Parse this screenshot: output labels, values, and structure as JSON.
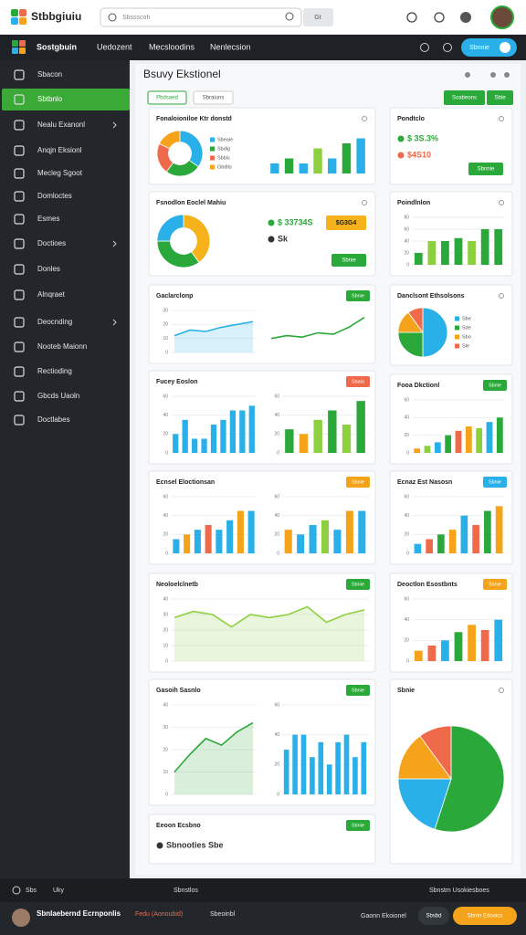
{
  "header": {
    "logo": "Stbbgiuiu",
    "search": "Sbssscoh",
    "search_button": "Gt"
  },
  "nav": {
    "brand": "Sostgbuin",
    "items": [
      "Uedozent",
      "Mecsloodins",
      "Nenlecsion"
    ],
    "button": "Sbnnie"
  },
  "sidebar": {
    "items": [
      "Sbacon",
      "Sbtbnlo",
      "Nealu Exanonl",
      "Anqjn Eksionl",
      "Mecleg Sgoot",
      "Domloctes",
      "Esmes",
      "Doctioes",
      "Donles",
      "Alnqraet",
      "Deocnding",
      "Nooteb Maionn",
      "Rectioding",
      "Gbcds Uaoln",
      "Doctlabes"
    ],
    "active": 1
  },
  "main": {
    "title": "Bsuvy Ekstionel",
    "tabs": [
      "Pbdsaed",
      "Sbraiuns"
    ],
    "buttons": [
      "Soabeons",
      "Sbte"
    ]
  },
  "cards": [
    {
      "title": "Fonaloioniloe Ktr donstd",
      "charts": [
        {
          "type": "donut",
          "values": [
            35,
            25,
            22,
            18
          ],
          "colors": [
            "#2ab0e8",
            "#2aa83a",
            "#ef6a4a",
            "#f5a31a"
          ],
          "labels": [
            "Sbeaie",
            "Sbdig",
            "Sbbis",
            "Gbdlis"
          ]
        },
        {
          "type": "bar",
          "values": [
            2,
            3,
            2,
            5,
            3,
            6,
            7
          ],
          "colors": [
            "#2ab0e8",
            "#2aa83a",
            "#2ab0e8",
            "#8ccf3f",
            "#2ab0e8",
            "#2aa83a",
            "#2ab0e8"
          ],
          "ylim": [
            0,
            8
          ]
        }
      ]
    },
    {
      "title": "Pondtclo",
      "charts": [
        {
          "type": "stat",
          "items": [
            "$ 3S.3%",
            "$4S10"
          ],
          "item_colors": [
            "#2aa83a",
            "#ef6a4a"
          ],
          "button": "Sbnnie"
        }
      ]
    },
    {
      "title": "Fsnodlon Eoclel Mahiu",
      "charts": [
        {
          "type": "donut",
          "values": [
            40,
            35,
            25
          ],
          "colors": [
            "#f5b21a",
            "#2aa83a",
            "#2ab0e8"
          ]
        },
        {
          "type": "stat",
          "items": [
            "$ 33734S",
            "Sk"
          ],
          "item_colors": [
            "#2aa83a",
            "#333333"
          ],
          "badge": "$G3G4",
          "button": "Sbnie"
        }
      ]
    },
    {
      "title": "Poindlnlon",
      "charts": [
        {
          "type": "bar",
          "values": [
            20,
            40,
            40,
            45,
            40,
            60,
            60
          ],
          "colors": [
            "#2aa83a",
            "#8ccf3f",
            "#2aa83a"
          ],
          "ylim": [
            0,
            80
          ],
          "yticks": [
            0,
            20,
            40,
            60,
            80
          ]
        }
      ]
    },
    {
      "title": "Gaclarclonp",
      "badge": "Sbnie",
      "badge_color": "#2aa83a",
      "charts": [
        {
          "type": "line",
          "values": [
            12,
            16,
            15,
            18,
            20,
            22
          ],
          "color": "#2ab0e8",
          "area": true,
          "ylim": [
            0,
            30
          ],
          "yticks": [
            0,
            10,
            20,
            30
          ]
        },
        {
          "type": "line",
          "values": [
            10,
            12,
            11,
            14,
            13,
            18,
            25
          ],
          "color": "#2aa83a",
          "ylim": [
            0,
            30
          ]
        }
      ]
    },
    {
      "title": "Danclsont Ethsolsons",
      "charts": [
        {
          "type": "pie",
          "values": [
            50,
            25,
            15,
            10
          ],
          "colors": [
            "#2ab0e8",
            "#2aa83a",
            "#f5a31a",
            "#ef6a4a"
          ],
          "labels": [
            "Sbe",
            "Sde",
            "Sbo",
            "Sle"
          ]
        }
      ]
    },
    {
      "title": "Fucey Eoslon",
      "badge": "Sbaio",
      "badge_color": "#ef6a4a",
      "charts": [
        {
          "type": "bar",
          "values": [
            20,
            35,
            15,
            15,
            30,
            35,
            45,
            45,
            50
          ],
          "colors": [
            "#2ab0e8"
          ],
          "ylim": [
            0,
            60
          ],
          "yticks": [
            0,
            20,
            40,
            60
          ]
        },
        {
          "type": "bar",
          "values": [
            25,
            20,
            35,
            45,
            30,
            55
          ],
          "colors": [
            "#2aa83a",
            "#f5a31a",
            "#8ccf3f",
            "#2aa83a",
            "#8ccf3f",
            "#2aa83a"
          ],
          "ylim": [
            0,
            60
          ],
          "yticks": [
            0,
            20,
            40,
            60
          ]
        }
      ]
    },
    {
      "title": "Fooa Dkctionl",
      "badge": "Sbnie",
      "badge_color": "#2aa83a",
      "charts": [
        {
          "type": "bar",
          "values": [
            5,
            8,
            12,
            20,
            25,
            30,
            28,
            35,
            40
          ],
          "colors": [
            "#f5a31a",
            "#8ccf3f",
            "#2ab0e8",
            "#2aa83a",
            "#ef6a4a"
          ],
          "ylim": [
            0,
            60
          ],
          "yticks": [
            0,
            20,
            40,
            60
          ]
        }
      ]
    },
    {
      "title": "Ecnsel Eloctionsan",
      "badge": "Sbnie",
      "badge_color": "#f5a31a",
      "charts": [
        {
          "type": "bar",
          "values": [
            15,
            20,
            25,
            30,
            25,
            35,
            45,
            45
          ],
          "colors": [
            "#2ab0e8",
            "#f5a31a",
            "#2ab0e8",
            "#ef6a4a",
            "#2ab0e8"
          ],
          "ylim": [
            0,
            60
          ],
          "yticks": [
            0,
            20,
            40,
            60
          ]
        },
        {
          "type": "bar",
          "values": [
            25,
            20,
            30,
            35,
            25,
            45,
            45
          ],
          "colors": [
            "#f5a31a",
            "#2ab0e8",
            "#2ab0e8",
            "#8ccf3f",
            "#2ab0e8"
          ],
          "ylim": [
            0,
            60
          ],
          "yticks": [
            0,
            20,
            40,
            60
          ]
        }
      ]
    },
    {
      "title": "Ecnaz Est Nasosn",
      "badge": "Sbnie",
      "badge_color": "#2ab0e8",
      "charts": [
        {
          "type": "bar",
          "values": [
            10,
            15,
            20,
            25,
            40,
            30,
            45,
            50
          ],
          "colors": [
            "#2ab0e8",
            "#ef6a4a",
            "#2aa83a",
            "#f5a31a"
          ],
          "ylim": [
            0,
            60
          ],
          "yticks": [
            0,
            20,
            40,
            60
          ]
        }
      ]
    },
    {
      "title": "Neoloelclnetb",
      "badge": "Sbnie",
      "badge_color": "#2aa83a",
      "charts": [
        {
          "type": "line",
          "values": [
            28,
            32,
            30,
            22,
            30,
            28,
            30,
            35,
            25,
            30,
            33
          ],
          "color": "#8ccf3f",
          "area": true,
          "ylim": [
            0,
            40
          ],
          "yticks": [
            0,
            10,
            20,
            30,
            40
          ]
        }
      ]
    },
    {
      "title": "Deoctlon Esostbnts",
      "badge": "Sbnie",
      "badge_color": "#f5a31a",
      "charts": [
        {
          "type": "bar",
          "values": [
            10,
            15,
            20,
            28,
            35,
            30,
            40
          ],
          "colors": [
            "#f5a31a",
            "#ef6a4a",
            "#2ab0e8",
            "#2aa83a"
          ],
          "ylim": [
            0,
            60
          ],
          "yticks": [
            0,
            20,
            40,
            60
          ]
        }
      ]
    },
    {
      "title": "Gasoih Sasnlo",
      "badge": "Sbnie",
      "badge_color": "#2aa83a",
      "charts": [
        {
          "type": "line",
          "values": [
            10,
            18,
            25,
            22,
            28,
            32
          ],
          "color": "#2aa83a",
          "area": true,
          "ylim": [
            0,
            40
          ],
          "yticks": [
            0,
            10,
            20,
            30,
            40
          ]
        },
        {
          "type": "bar",
          "values": [
            30,
            40,
            40,
            25,
            35,
            20,
            35,
            40,
            25,
            35
          ],
          "colors": [
            "#2ab0e8"
          ],
          "ylim": [
            0,
            60
          ],
          "yticks": [
            0,
            20,
            40,
            60
          ]
        }
      ]
    },
    {
      "title": "Sbnie",
      "charts": [
        {
          "type": "pie",
          "values": [
            55,
            20,
            15,
            10
          ],
          "colors": [
            "#2aa83a",
            "#2ab0e8",
            "#f5a31a",
            "#ef6a4a"
          ]
        }
      ]
    },
    {
      "title": "Eeoon Ecsbno",
      "badge": "Sbnie",
      "badge_color": "#2aa83a",
      "charts": [
        {
          "type": "stat",
          "items": [
            "Sbnooties Sbe"
          ],
          "item_colors": [
            "#333333"
          ]
        }
      ]
    }
  ],
  "footer": {
    "top": [
      "Sbs",
      "Uky",
      "Sbnstlos",
      "Sbnstm Usokiesboes"
    ],
    "bottom": [
      "Sbnlaebernd Ecrnponlis",
      "Fedu (Aonoubid)",
      "Sbeoinbl",
      "Gaonn Ekoionel",
      "Sbsbd",
      "Sbntn Edooics"
    ]
  }
}
